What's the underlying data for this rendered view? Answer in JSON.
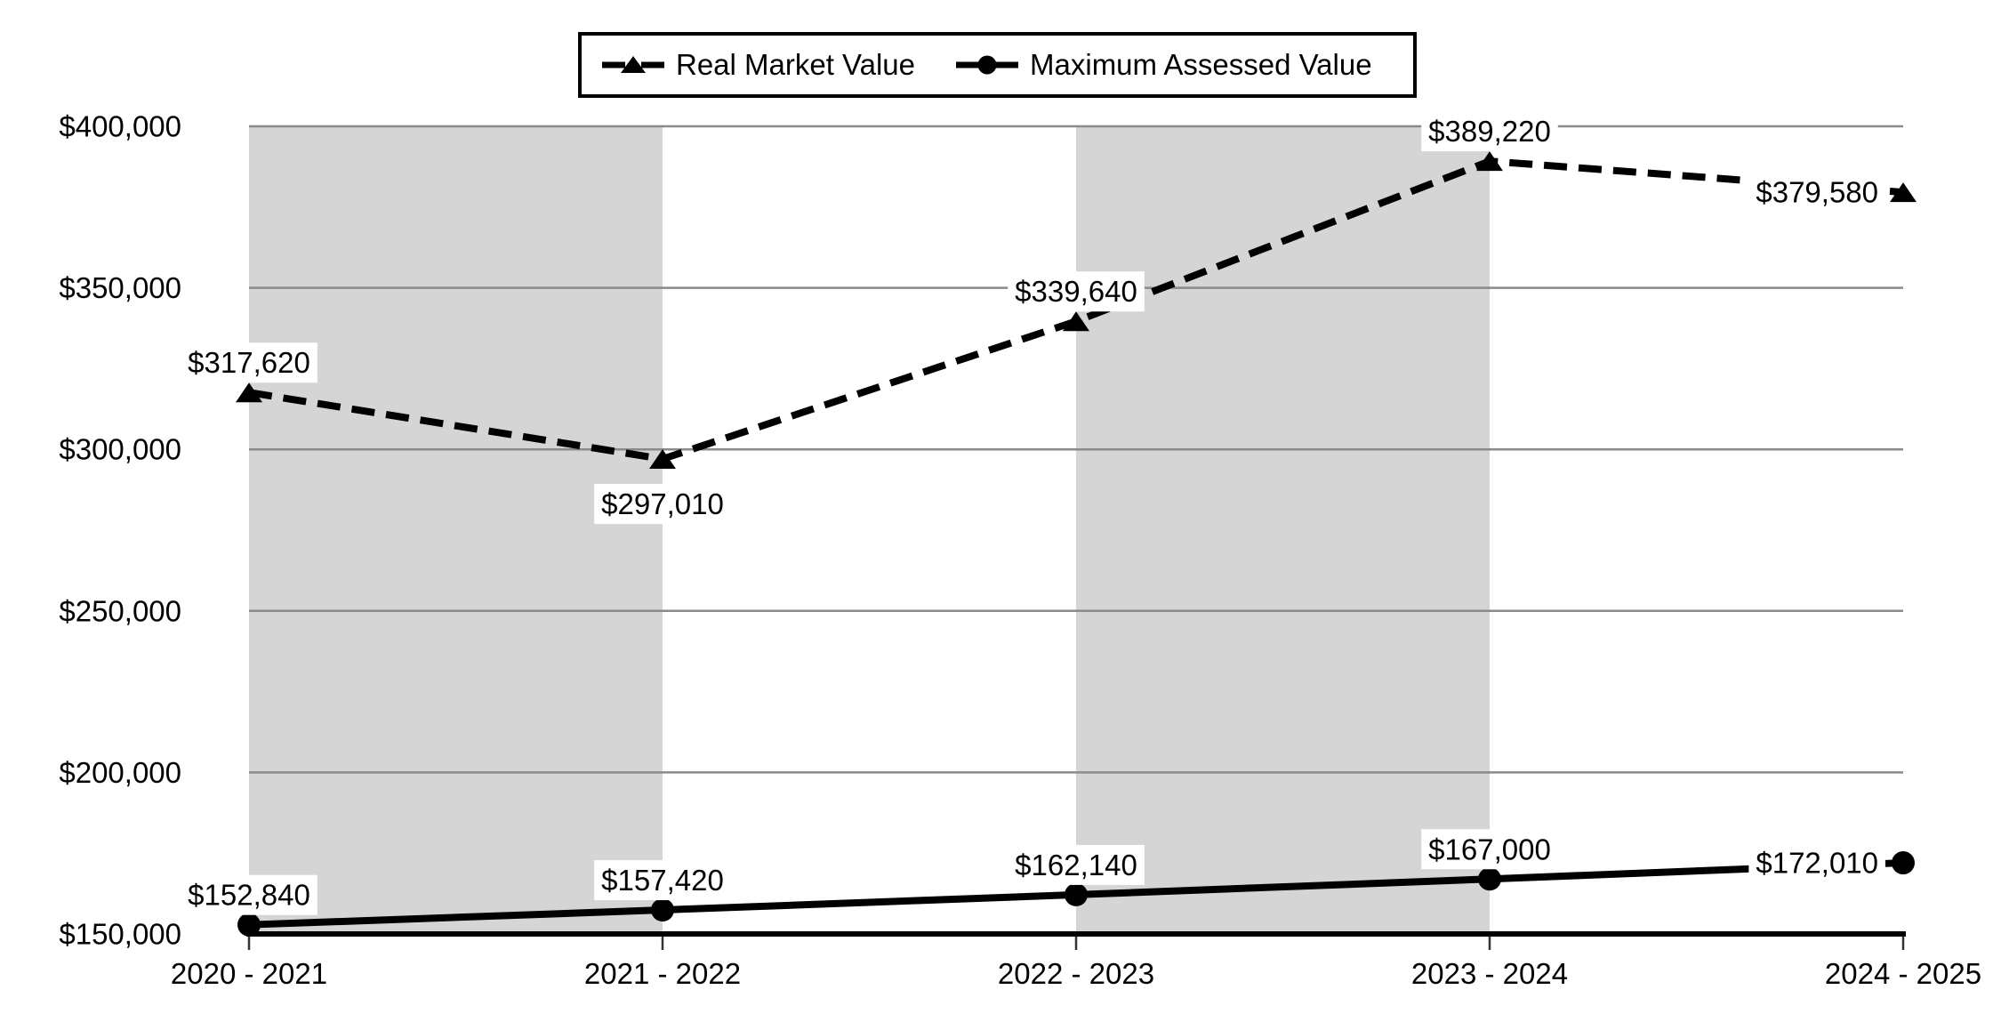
{
  "chart_data": {
    "type": "line",
    "title": "",
    "categories": [
      "2020 - 2021",
      "2021 - 2022",
      "2022 - 2023",
      "2023 - 2024",
      "2024 - 2025"
    ],
    "series": [
      {
        "name": "Real Market Value",
        "line_style": "dashed",
        "marker": "triangle",
        "values": [
          317620,
          297010,
          339640,
          389220,
          379580
        ],
        "data_labels": [
          "$317,620",
          "$297,010",
          "$339,640",
          "$389,220",
          "$379,580"
        ],
        "label_placement": [
          "above",
          "below",
          "above",
          "above",
          "left"
        ]
      },
      {
        "name": "Maximum Assessed Value",
        "line_style": "solid",
        "marker": "circle",
        "values": [
          152840,
          157420,
          162140,
          167000,
          172010
        ],
        "data_labels": [
          "$152,840",
          "$157,420",
          "$162,140",
          "$167,000",
          "$172,010"
        ],
        "label_placement": [
          "above",
          "above",
          "above",
          "above",
          "left"
        ]
      }
    ],
    "y_axis": {
      "min": 150000,
      "max": 400000,
      "step": 50000,
      "tick_labels": [
        "$150,000",
        "$200,000",
        "$250,000",
        "$300,000",
        "$350,000",
        "$400,000"
      ]
    },
    "x_axis": {
      "tick_labels": [
        "2020 - 2021",
        "2021 - 2022",
        "2022 - 2023",
        "2023 - 2024",
        "2024 - 2025"
      ]
    },
    "plot_bands": {
      "intervals": [
        [
          0,
          1
        ],
        [
          2,
          3
        ]
      ]
    },
    "grid": {
      "on": true
    },
    "legend_position": "top"
  },
  "legend": {
    "items": [
      {
        "label": "Real Market Value",
        "icon": "dashed-line-triangle-marker"
      },
      {
        "label": "Maximum Assessed Value",
        "icon": "solid-line-circle-marker"
      }
    ]
  },
  "colors": {
    "series": "#000000",
    "band": "#d5d5d5",
    "gridline": "#8a8a8a",
    "axis": "#000000",
    "tick": "#333333",
    "label_background": "#ffffff",
    "background": "#ffffff"
  }
}
